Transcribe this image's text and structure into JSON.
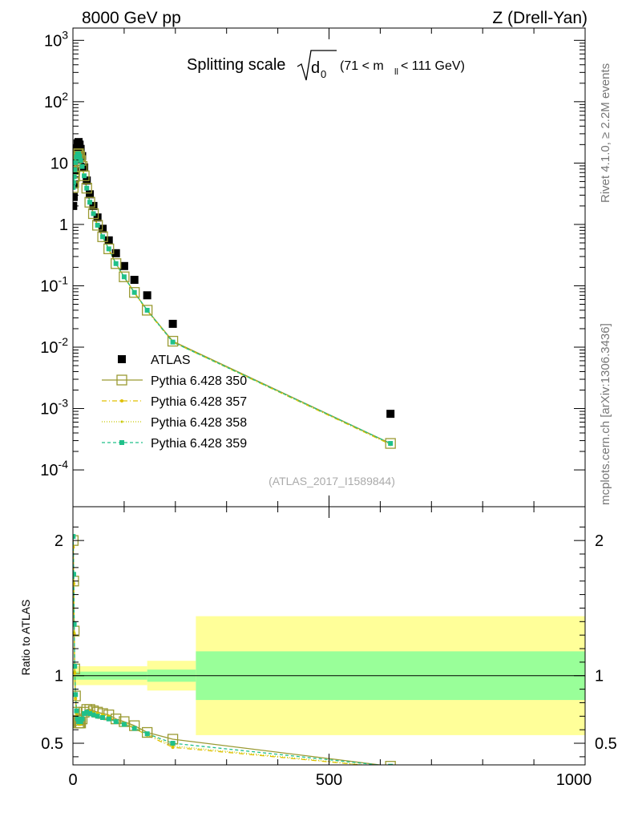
{
  "header": {
    "left": "8000 GeV pp",
    "right": "Z (Drell-Yan)"
  },
  "title": {
    "main": "Splitting scale",
    "sqrt_arg": "d",
    "sqrt_sub": "0",
    "cut_open": "(71 < m",
    "cut_sub": "ll",
    "cut_close": " < 111 GeV)"
  },
  "side_text": {
    "rivet": "Rivet 4.1.0, ≥ 2.2M events",
    "mcplots": "mcplots.cern.ch [arXiv:1306.3436]"
  },
  "analysis_id": "(ATLAS_2017_I1589844)",
  "ratio_ylabel": "Ratio to ATLAS",
  "colors": {
    "data": "#000000",
    "p350": "#9a9a32",
    "p357": "#e0c000",
    "p358": "#c8c800",
    "p359": "#20c08a",
    "band_outer": "#ffff99",
    "band_inner": "#99ff99"
  },
  "chart_data": [
    {
      "type": "scatter",
      "panel": "main",
      "ylog": true,
      "xlim": [
        0,
        1000
      ],
      "ylim_exp": [
        -4.6,
        3.2
      ],
      "ytick_labels": [
        "10^3",
        "10^2",
        "10",
        "1",
        "10^-1",
        "10^-2",
        "10^-3",
        "10^-4"
      ],
      "series": [
        {
          "name": "ATLAS",
          "style": "data",
          "x": [
            0.5,
            1.5,
            2.5,
            3.5,
            5,
            7,
            9,
            11,
            13,
            15,
            18,
            22,
            27,
            33,
            40,
            48,
            58,
            70,
            84,
            100,
            120,
            145,
            195,
            620
          ],
          "y": [
            2.0,
            2.8,
            4.5,
            7.5,
            12,
            17,
            21,
            22,
            20,
            17,
            13,
            8.5,
            5.2,
            3.1,
            2.0,
            1.3,
            0.85,
            0.55,
            0.34,
            0.21,
            0.125,
            0.07,
            0.024,
            0.00082
          ]
        },
        {
          "name": "Pythia 6.428 350",
          "style": "p350",
          "x": [
            0.5,
            1.5,
            2.5,
            3.5,
            5,
            7,
            9,
            11,
            13,
            15,
            18,
            22,
            27,
            33,
            40,
            48,
            58,
            70,
            84,
            100,
            120,
            145,
            195,
            620
          ],
          "y": [
            4.0,
            4.8,
            6.0,
            7.8,
            10.2,
            12.5,
            14.0,
            14.2,
            13.0,
            11.0,
            8.8,
            6.2,
            3.9,
            2.3,
            1.5,
            0.97,
            0.63,
            0.4,
            0.23,
            0.14,
            0.078,
            0.04,
            0.0125,
            0.00027
          ]
        },
        {
          "name": "Pythia 6.428 357",
          "style": "p357",
          "x": [
            0.5,
            1.5,
            2.5,
            3.5,
            5,
            7,
            9,
            11,
            13,
            15,
            18,
            22,
            27,
            33,
            40,
            48,
            58,
            70,
            84,
            100,
            120,
            145,
            195,
            620
          ],
          "y": [
            3.9,
            4.7,
            5.9,
            7.6,
            10.0,
            12.3,
            13.8,
            14.0,
            12.8,
            10.8,
            8.6,
            6.1,
            3.8,
            2.25,
            1.45,
            0.95,
            0.61,
            0.39,
            0.225,
            0.137,
            0.076,
            0.039,
            0.0121,
            0.00026
          ]
        },
        {
          "name": "Pythia 6.428 358",
          "style": "p358",
          "x": [
            0.5,
            1.5,
            2.5,
            3.5,
            5,
            7,
            9,
            11,
            13,
            15,
            18,
            22,
            27,
            33,
            40,
            48,
            58,
            70,
            84,
            100,
            120,
            145,
            195,
            620
          ],
          "y": [
            3.9,
            4.7,
            5.9,
            7.7,
            10.1,
            12.4,
            13.9,
            14.1,
            12.9,
            10.9,
            8.7,
            6.1,
            3.85,
            2.27,
            1.47,
            0.96,
            0.62,
            0.395,
            0.227,
            0.138,
            0.077,
            0.0395,
            0.0122,
            0.00026
          ]
        },
        {
          "name": "Pythia 6.428 359",
          "style": "p359",
          "x": [
            0.5,
            1.5,
            2.5,
            3.5,
            5,
            7,
            9,
            11,
            13,
            15,
            18,
            22,
            27,
            33,
            40,
            48,
            58,
            70,
            84,
            100,
            120,
            145,
            195,
            620
          ],
          "y": [
            4.0,
            4.8,
            6.0,
            7.8,
            10.2,
            12.5,
            14.0,
            14.2,
            13.0,
            11.0,
            8.8,
            6.2,
            3.9,
            2.3,
            1.5,
            0.97,
            0.63,
            0.4,
            0.23,
            0.14,
            0.078,
            0.04,
            0.0121,
            0.00027
          ]
        }
      ]
    },
    {
      "type": "line",
      "panel": "ratio",
      "xlim": [
        0,
        1000
      ],
      "ylim": [
        0.34,
        2.25
      ],
      "yticks": [
        0.5,
        1,
        2
      ],
      "ytick_labels": [
        "0.5",
        "1",
        "2"
      ],
      "xticks": [
        0,
        500,
        1000
      ],
      "xtick_labels": [
        "0",
        "500",
        "1000"
      ],
      "bands": [
        {
          "x0": 0,
          "x1": 145,
          "inner": [
            0.97,
            1.03
          ],
          "outer": [
            0.93,
            1.07
          ]
        },
        {
          "x0": 145,
          "x1": 240,
          "inner": [
            0.955,
            1.045
          ],
          "outer": [
            0.89,
            1.11
          ]
        },
        {
          "x0": 240,
          "x1": 1000,
          "inner": [
            0.82,
            1.18
          ],
          "outer": [
            0.56,
            1.44
          ]
        }
      ],
      "series": [
        {
          "name": "Pythia 6.428 350",
          "style": "p350",
          "x": [
            0.5,
            1.5,
            2.5,
            3.5,
            5,
            7,
            9,
            11,
            13,
            15,
            18,
            22,
            27,
            33,
            40,
            48,
            58,
            70,
            84,
            100,
            120,
            145,
            195,
            620
          ],
          "y": [
            2.0,
            1.7,
            1.33,
            1.05,
            0.85,
            0.73,
            0.67,
            0.65,
            0.65,
            0.65,
            0.68,
            0.73,
            0.75,
            0.75,
            0.74,
            0.73,
            0.72,
            0.71,
            0.68,
            0.66,
            0.63,
            0.58,
            0.53,
            0.33
          ]
        },
        {
          "name": "Pythia 6.428 357",
          "style": "p357",
          "x": [
            0.5,
            1.5,
            2.5,
            3.5,
            5,
            7,
            9,
            11,
            13,
            15,
            18,
            22,
            27,
            33,
            40,
            48,
            58,
            70,
            84,
            100,
            120,
            145,
            195,
            620
          ],
          "y": [
            1.95,
            1.68,
            1.31,
            1.02,
            0.83,
            0.72,
            0.66,
            0.64,
            0.64,
            0.64,
            0.67,
            0.72,
            0.73,
            0.73,
            0.72,
            0.72,
            0.71,
            0.7,
            0.66,
            0.65,
            0.61,
            0.56,
            0.47,
            0.32
          ]
        },
        {
          "name": "Pythia 6.428 358",
          "style": "p358",
          "x": [
            0.5,
            1.5,
            2.5,
            3.5,
            5,
            7,
            9,
            11,
            13,
            15,
            18,
            22,
            27,
            33,
            40,
            48,
            58,
            70,
            84,
            100,
            120,
            145,
            195,
            620
          ],
          "y": [
            1.96,
            1.69,
            1.32,
            1.03,
            0.84,
            0.72,
            0.66,
            0.64,
            0.64,
            0.64,
            0.67,
            0.72,
            0.74,
            0.74,
            0.73,
            0.72,
            0.71,
            0.7,
            0.67,
            0.65,
            0.62,
            0.57,
            0.48,
            0.32
          ]
        },
        {
          "name": "Pythia 6.428 359",
          "style": "p359",
          "x": [
            0.5,
            1.5,
            2.5,
            3.5,
            5,
            7,
            9,
            11,
            13,
            15,
            18,
            22,
            27,
            33,
            40,
            48,
            58,
            70,
            84,
            100,
            120,
            145,
            195,
            620
          ],
          "y": [
            2.03,
            1.75,
            1.38,
            1.07,
            0.86,
            0.74,
            0.68,
            0.66,
            0.66,
            0.66,
            0.68,
            0.72,
            0.73,
            0.72,
            0.71,
            0.7,
            0.69,
            0.68,
            0.66,
            0.64,
            0.61,
            0.57,
            0.5,
            0.33
          ]
        }
      ]
    }
  ]
}
